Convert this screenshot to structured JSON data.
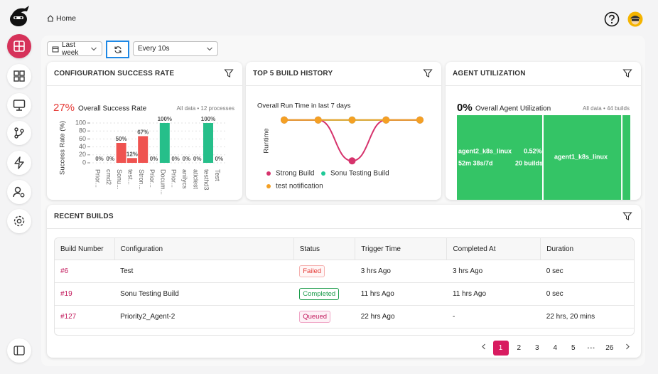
{
  "header": {
    "breadcrumb": "Home"
  },
  "toolbar": {
    "range": "Last week",
    "refresh_interval": "Every 10s"
  },
  "chart_data": [
    {
      "type": "bar",
      "card_title": "CONFIGURATION SUCCESS RATE",
      "headline": "27%",
      "subtitle": "Overall Success Rate",
      "note": "All data • 12 processes",
      "y_label": "Success Rate (%)",
      "categories": [
        "Prior...",
        "cmd2",
        "Sonu...",
        "test...",
        "Stron...",
        "Prior...",
        "Docum...",
        "Prior...",
        "anilycs",
        "aticlest",
        "testhd3",
        "Test"
      ],
      "values": [
        0,
        0,
        50,
        12,
        67,
        0,
        100,
        0,
        0,
        0,
        100,
        0
      ],
      "value_labels": [
        "0%",
        "0%",
        "50%",
        "12%",
        "67%",
        "0%",
        "100%",
        "0%",
        "0%",
        "0%",
        "100%",
        "0%"
      ],
      "colors": [
        "#ef5350",
        "#ef5350",
        "#ef5350",
        "#ef5350",
        "#ef5350",
        "#ef5350",
        "#26bf8a",
        "#ef5350",
        "#ef5350",
        "#ef5350",
        "#26bf8a",
        "#ef5350"
      ],
      "ylim": [
        0,
        100
      ],
      "yticks": [
        0,
        20,
        40,
        60,
        80,
        100
      ],
      "grid": true
    },
    {
      "type": "line",
      "card_title": "TOP 5 BUILD HISTORY",
      "title": "Overall Run Time in last 7 days",
      "y_label": "Runtime",
      "categories": [
        null,
        null,
        null,
        null,
        null
      ],
      "series": [
        {
          "name": "Strong Build",
          "color": "#d6336c",
          "values": [
            1,
            1,
            0,
            1,
            1
          ]
        },
        {
          "name": "Sonu Testing Build",
          "color": "#20c997",
          "values": [
            1,
            1,
            1,
            1,
            1
          ]
        },
        {
          "name": "test notification",
          "color": "#f4a024",
          "values": [
            1,
            1,
            1,
            1,
            1
          ]
        }
      ],
      "ylim": [
        -0.1,
        1.1
      ],
      "legend": "bottom"
    },
    {
      "type": "treemap",
      "card_title": "AGENT UTILIZATION",
      "headline": "0%",
      "subtitle": "Overall Agent Utilization",
      "note": "All data • 44 builds",
      "series": [
        {
          "name": "agent2_k8s_linux",
          "value": 22,
          "color": "#34c466",
          "share": "0.52%",
          "runtime": "52m 38s/7d",
          "builds": "20 builds"
        },
        {
          "name": "agent1_k8s_linux",
          "value": 20,
          "color": "#34c466"
        },
        {
          "name": null,
          "value": 2,
          "color": "#34c466"
        }
      ]
    }
  ],
  "recent_builds": {
    "title": "RECENT BUILDS",
    "columns": [
      "Build Number",
      "Configuration",
      "Status",
      "Trigger Time",
      "Completed At",
      "Duration"
    ],
    "rows": [
      [
        "#6",
        "Test",
        "Failed",
        "3 hrs Ago",
        "3 hrs Ago",
        "0 sec"
      ],
      [
        "#19",
        "Sonu Testing Build",
        "Completed",
        "11 hrs Ago",
        "11 hrs Ago",
        "0 sec"
      ],
      [
        "#127",
        "Priority2_Agent-2",
        "Queued",
        "22 hrs Ago",
        "-",
        "22 hrs, 20 mins"
      ]
    ]
  },
  "pagination": {
    "pages": [
      1,
      2,
      3,
      4,
      5,
      26
    ],
    "ellipsis": "•••"
  }
}
